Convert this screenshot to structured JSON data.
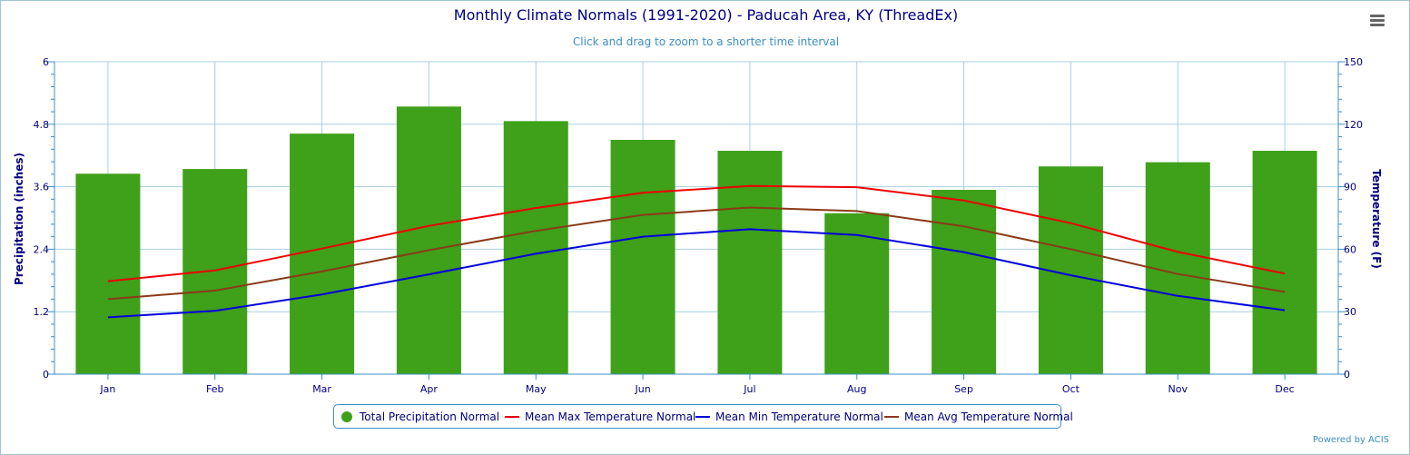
{
  "header": {
    "title": "Monthly Climate Normals (1991-2020) - Paducah Area, KY (ThreadEx)",
    "subtitle": "Click and drag to zoom to a shorter time interval"
  },
  "menu": {
    "icon": "hamburger-menu-icon"
  },
  "credit": "Powered by ACIS",
  "colors": {
    "title": "#000080",
    "subtitle": "#3e8fc4",
    "grid": "#a9d0e4",
    "precip": "#3fa01a",
    "max": "#ee0000",
    "min": "#0000dd",
    "avg": "#8b3a16"
  },
  "chart_data": {
    "type": "bar",
    "title": "Monthly Climate Normals (1991-2020) - Paducah Area, KY (ThreadEx)",
    "subtitle": "Click and drag to zoom to a shorter time interval",
    "categories": [
      "Jan",
      "Feb",
      "Mar",
      "Apr",
      "May",
      "Jun",
      "Jul",
      "Aug",
      "Sep",
      "Oct",
      "Nov",
      "Dec"
    ],
    "y_left": {
      "label": "Precipitation (inches)",
      "range": [
        0,
        6
      ],
      "ticks": [
        "0",
        "1.2",
        "2.4",
        "3.6",
        "4.8",
        "6"
      ]
    },
    "y_right": {
      "label": "Temperature (F)",
      "range": [
        0,
        150
      ],
      "ticks": [
        "0",
        "30",
        "60",
        "90",
        "120",
        "150"
      ]
    },
    "grid": true,
    "legend_position": "bottom-center",
    "series": [
      {
        "name": "Total Precipitation Normal",
        "type": "bar",
        "axis": "left",
        "values": [
          3.85,
          3.94,
          4.62,
          5.14,
          4.86,
          4.5,
          4.29,
          3.09,
          3.54,
          3.99,
          4.07,
          4.29
        ]
      },
      {
        "name": "Mean Max Temperature Normal",
        "type": "line",
        "axis": "right",
        "values": [
          44.6,
          49.8,
          60.3,
          71.2,
          79.8,
          87.1,
          90.4,
          89.8,
          83.4,
          72.5,
          58.7,
          48.3
        ]
      },
      {
        "name": "Mean Min Temperature Normal",
        "type": "line",
        "axis": "right",
        "values": [
          27.3,
          30.4,
          38.3,
          47.9,
          57.8,
          66.0,
          69.6,
          66.8,
          58.6,
          47.5,
          37.6,
          30.7
        ]
      },
      {
        "name": "Mean Avg Temperature Normal",
        "type": "line",
        "axis": "right",
        "values": [
          36.0,
          40.1,
          49.3,
          59.5,
          68.8,
          76.5,
          80.0,
          78.3,
          71.0,
          60.0,
          48.1,
          39.5
        ]
      }
    ]
  }
}
